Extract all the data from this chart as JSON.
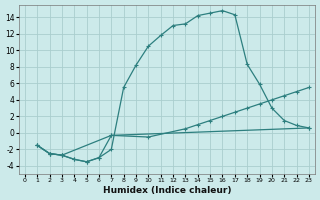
{
  "xlabel": "Humidex (Indice chaleur)",
  "bg_color": "#cceaea",
  "line_color": "#2d7f7f",
  "grid_color": "#aacece",
  "xlim": [
    -0.5,
    23.5
  ],
  "ylim": [
    -5,
    15.5
  ],
  "xticks": [
    0,
    1,
    2,
    3,
    4,
    5,
    6,
    7,
    8,
    9,
    10,
    11,
    12,
    13,
    14,
    15,
    16,
    17,
    18,
    19,
    20,
    21,
    22,
    23
  ],
  "yticks": [
    -4,
    -2,
    0,
    2,
    4,
    6,
    8,
    10,
    12,
    14
  ],
  "series1_x": [
    1,
    2,
    3,
    4,
    5,
    6,
    7,
    8,
    9,
    10,
    11,
    12,
    13,
    14,
    15,
    16,
    17,
    18,
    19,
    20,
    21,
    22,
    23
  ],
  "series1_y": [
    -1.5,
    -2.5,
    -2.7,
    -3.2,
    -3.5,
    -3.0,
    -2.0,
    5.5,
    8.2,
    10.5,
    11.8,
    13.0,
    13.2,
    14.2,
    14.5,
    14.8,
    14.3,
    8.3,
    5.9,
    3.0,
    1.5,
    0.9,
    0.6
  ],
  "series2_x": [
    1,
    2,
    3,
    4,
    5,
    6,
    7,
    23
  ],
  "series2_y": [
    -1.5,
    -2.5,
    -2.7,
    -3.2,
    -3.5,
    -3.0,
    -0.3,
    0.6
  ],
  "series3_x": [
    1,
    2,
    3,
    7,
    10,
    13,
    14,
    15,
    16,
    17,
    18,
    19,
    20,
    21,
    22,
    23
  ],
  "series3_y": [
    -1.5,
    -2.5,
    -2.7,
    -0.3,
    -0.5,
    0.5,
    1.0,
    1.5,
    2.0,
    2.5,
    3.0,
    3.5,
    4.0,
    4.5,
    5.0,
    5.5
  ]
}
